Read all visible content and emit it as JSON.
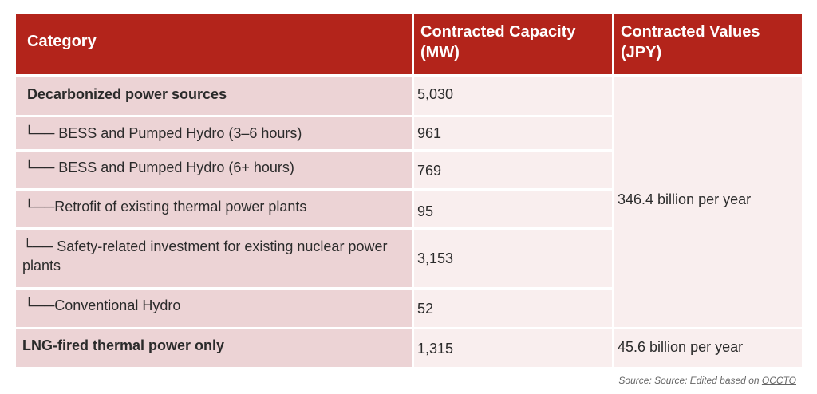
{
  "table": {
    "headers": {
      "category": "Category",
      "capacity": "Contracted Capacity (MW)",
      "values": "Contracted Values (JPY)"
    },
    "rows": [
      {
        "category": "Decarbonized power sources",
        "capacity": "5,030",
        "bold": true
      },
      {
        "category": "└── BESS and Pumped Hydro (3–6 hours)",
        "capacity": "961"
      },
      {
        "category": "└── BESS and Pumped Hydro (6+ hours)",
        "capacity": "769"
      },
      {
        "category": "└──Retrofit of existing thermal power plants",
        "capacity": "95"
      },
      {
        "category": "└── Safety-related investment for existing nuclear power plants",
        "capacity": "3,153"
      },
      {
        "category": "└──Conventional Hydro",
        "capacity": "52"
      },
      {
        "category": "LNG-fired thermal power only",
        "capacity": "1,315",
        "bold": true
      }
    ],
    "values": {
      "decarbonized": "346.4 billion per year",
      "lng": "45.6 billion per year"
    }
  },
  "source": {
    "prefix": "Source: Source: Edited based on ",
    "link": "OCCTO"
  }
}
